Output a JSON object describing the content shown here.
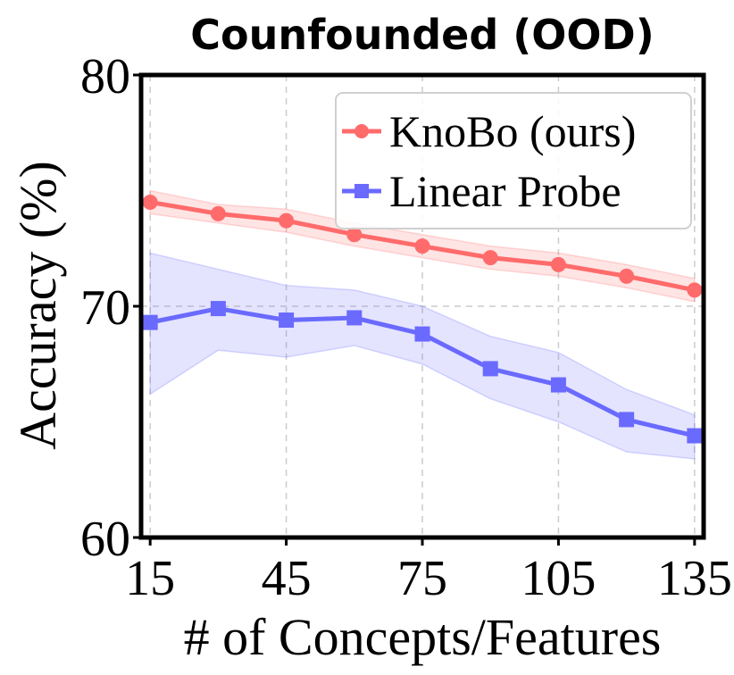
{
  "chart_data": {
    "type": "line",
    "title": "Counfounded (OOD)",
    "xlabel": "# of Concepts/Features",
    "ylabel": "Accuracy (%)",
    "xlim": [
      13,
      137
    ],
    "ylim": [
      60,
      80
    ],
    "xticks": [
      15,
      45,
      75,
      105,
      135
    ],
    "xtick_labels": [
      "15",
      "45",
      "75",
      "105",
      "135"
    ],
    "yticks": [
      60,
      70,
      80
    ],
    "ytick_labels": [
      "60",
      "70",
      "80"
    ],
    "grid": true,
    "legend_position": "top-right",
    "x": [
      15,
      30,
      45,
      60,
      75,
      90,
      105,
      120,
      135
    ],
    "series": [
      {
        "name": "KnoBo (ours)",
        "color": "#ff6b6b",
        "marker": "circle",
        "values": [
          74.5,
          74.0,
          73.7,
          73.1,
          72.6,
          72.1,
          71.8,
          71.3,
          70.7
        ],
        "lower": [
          74.0,
          73.6,
          73.2,
          72.6,
          72.1,
          71.6,
          71.3,
          70.8,
          70.2
        ],
        "upper": [
          75.0,
          74.4,
          74.2,
          73.6,
          73.1,
          72.6,
          72.3,
          71.8,
          71.2
        ]
      },
      {
        "name": "Linear Probe",
        "color": "#6a6aff",
        "marker": "square",
        "values": [
          69.3,
          69.9,
          69.4,
          69.5,
          68.8,
          67.3,
          66.6,
          65.1,
          64.4
        ],
        "lower": [
          66.2,
          68.1,
          67.8,
          68.3,
          67.5,
          66.0,
          65.0,
          63.7,
          63.4
        ],
        "upper": [
          72.3,
          71.6,
          70.9,
          70.7,
          70.0,
          68.7,
          68.0,
          66.4,
          65.3
        ]
      }
    ]
  }
}
